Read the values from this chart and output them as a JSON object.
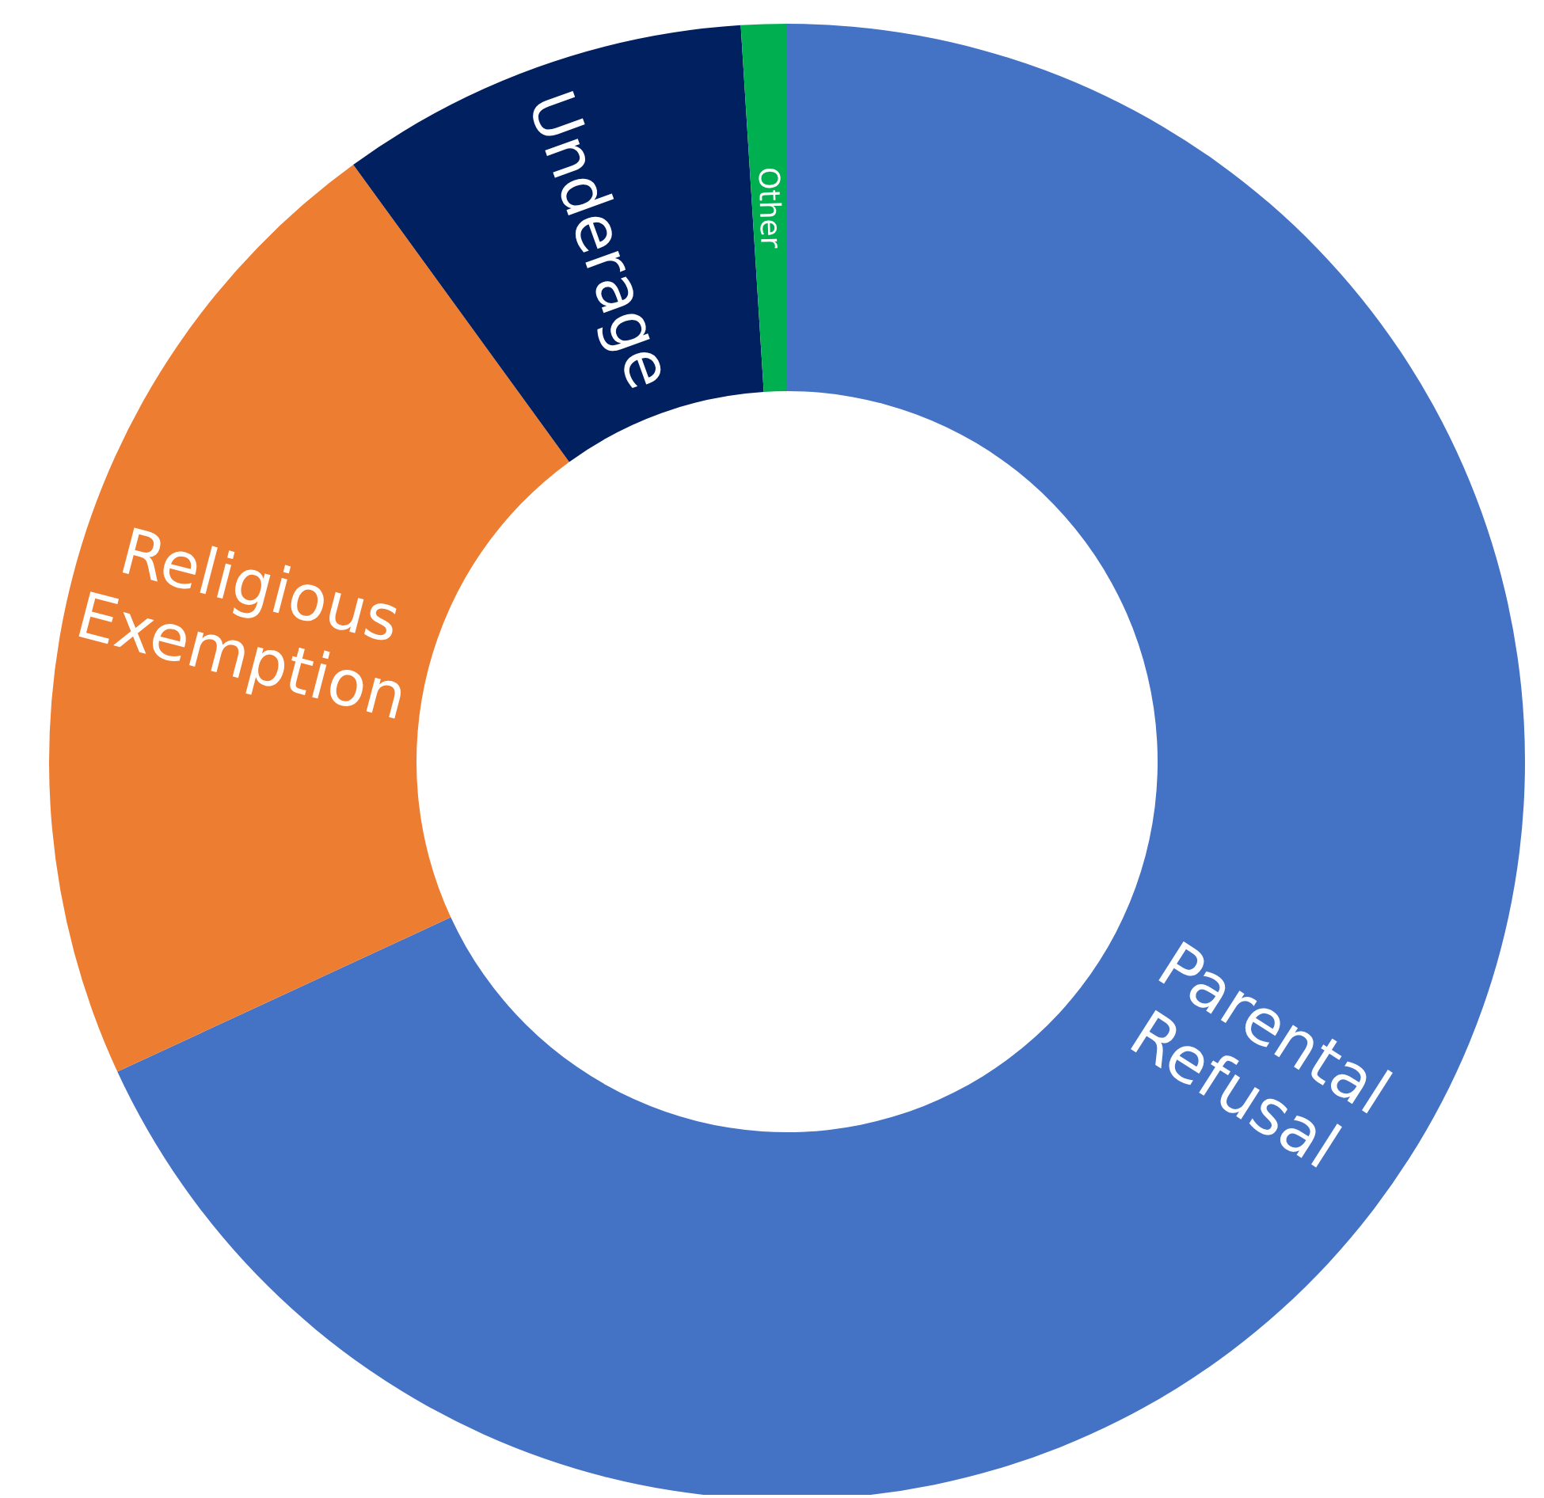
{
  "chart_data": {
    "type": "donut",
    "categories": [
      "Parental Refusal",
      "Religious Exemption",
      "Underage",
      "Other"
    ],
    "values": [
      68.1,
      21.9,
      9.0,
      1.0
    ],
    "colors": [
      "#4472c4",
      "#ed7d31",
      "#002060",
      "#00b050"
    ]
  }
}
